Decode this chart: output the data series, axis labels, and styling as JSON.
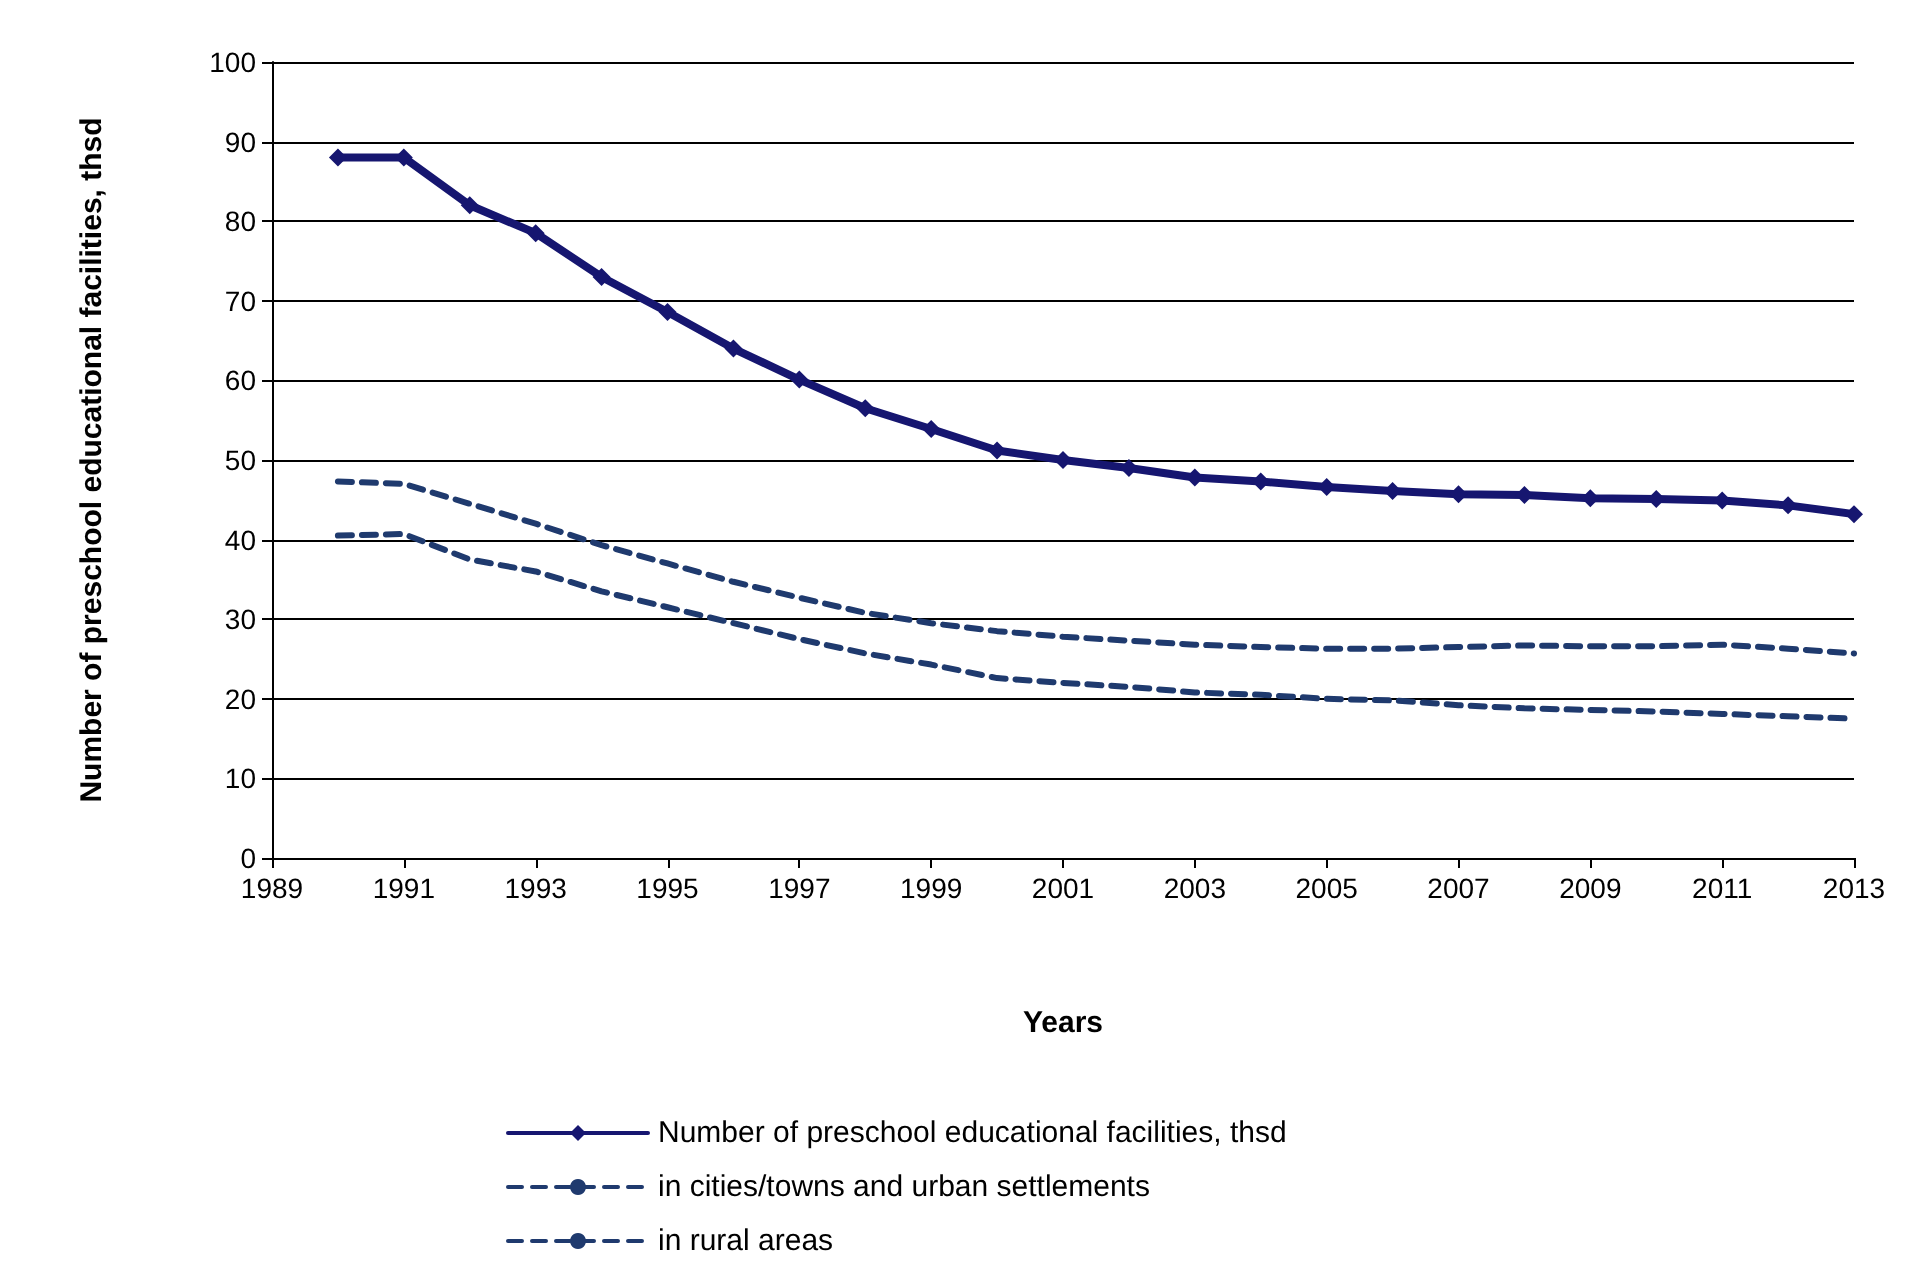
{
  "chart_data": {
    "type": "line",
    "xlabel": "Years",
    "ylabel": "Number of preschool educational facilities, thsd",
    "x": [
      1990,
      1991,
      1992,
      1993,
      1994,
      1995,
      1996,
      1997,
      1998,
      1999,
      2000,
      2001,
      2002,
      2003,
      2004,
      2005,
      2006,
      2007,
      2008,
      2009,
      2010,
      2011,
      2012,
      2013
    ],
    "series": [
      {
        "name": "Number of preschool educational facilities, thsd",
        "color": "#161670",
        "marker": "diamond",
        "line_style": "solid",
        "values": [
          88,
          88,
          82,
          78.5,
          73,
          68.6,
          64,
          60.1,
          56.5,
          53.9,
          51.2,
          50,
          49,
          47.8,
          47.3,
          46.6,
          46.1,
          45.7,
          45.6,
          45.2,
          45.1,
          44.9,
          44.3,
          43.2
        ]
      },
      {
        "name": "in cities/towns and urban settlements",
        "color": "#1f3a6e",
        "marker": "none",
        "line_style": "dashed",
        "values": [
          47.3,
          47,
          44.5,
          42,
          39.3,
          37,
          34.7,
          32.7,
          30.8,
          29.5,
          28.5,
          27.8,
          27.3,
          26.8,
          26.5,
          26.3,
          26.3,
          26.5,
          26.7,
          26.6,
          26.6,
          26.8,
          26.3,
          25.7
        ]
      },
      {
        "name": "in rural areas",
        "color": "#1f3a6e",
        "marker": "none",
        "line_style": "dashed",
        "values": [
          40.5,
          40.7,
          37.5,
          36,
          33.5,
          31.5,
          29.5,
          27.5,
          25.7,
          24.3,
          22.6,
          22,
          21.5,
          20.8,
          20.5,
          20,
          19.8,
          19.2,
          18.8,
          18.6,
          18.4,
          18.1,
          17.8,
          17.5
        ]
      }
    ],
    "xlim": [
      1989,
      2013
    ],
    "xticks": [
      1989,
      1991,
      1993,
      1995,
      1997,
      1999,
      2001,
      2003,
      2005,
      2007,
      2009,
      2011,
      2013
    ],
    "ylim": [
      0,
      100
    ],
    "yticks": [
      0,
      10,
      20,
      30,
      40,
      50,
      60,
      70,
      80,
      90,
      100
    ],
    "grid": "y",
    "legend": "bottom"
  }
}
